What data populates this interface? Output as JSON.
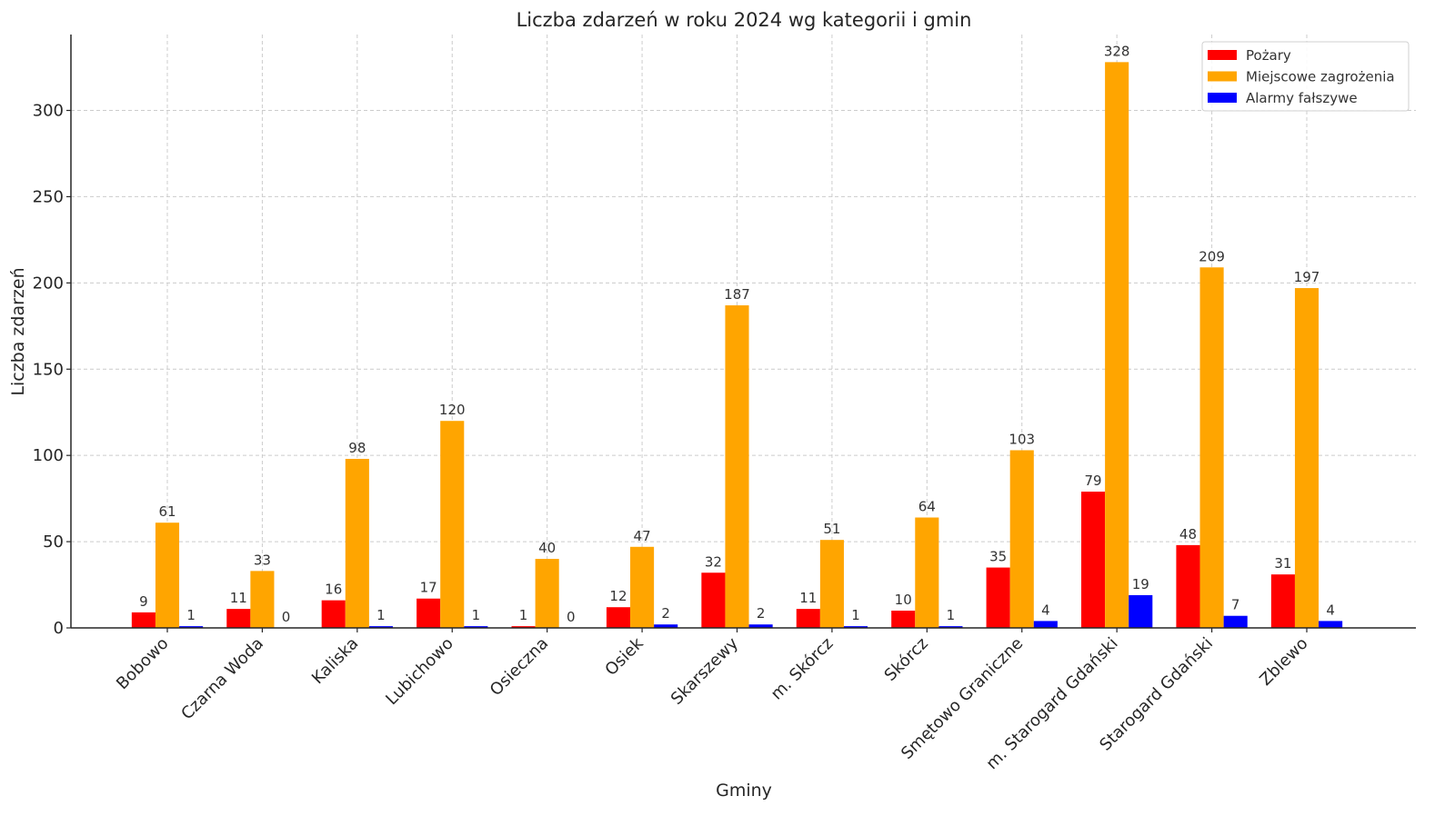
{
  "chart_data": {
    "type": "bar",
    "title": "Liczba zdarzeń w roku 2024 wg kategorii i gmin",
    "xlabel": "Gminy",
    "ylabel": "Liczba zdarzeń",
    "ylim": [
      0,
      344
    ],
    "yticks": [
      0,
      50,
      100,
      150,
      200,
      250,
      300
    ],
    "grid": true,
    "legend_position": "top-right",
    "categories": [
      "Bobowo",
      "Czarna Woda",
      "Kaliska",
      "Lubichowo",
      "Osieczna",
      "Osiek",
      "Skarszewy",
      "m. Skórcz",
      "Skórcz",
      "Smętowo Graniczne",
      "m. Starogard Gdański",
      "Starogard Gdański",
      "Zblewo"
    ],
    "series": [
      {
        "name": "Pożary",
        "color": "#ff0000",
        "values": [
          9,
          11,
          16,
          17,
          1,
          12,
          32,
          11,
          10,
          35,
          79,
          48,
          31
        ]
      },
      {
        "name": "Miejscowe zagrożenia",
        "color": "#ffa500",
        "values": [
          61,
          33,
          98,
          120,
          40,
          47,
          187,
          51,
          64,
          103,
          328,
          209,
          197
        ]
      },
      {
        "name": "Alarmy fałszywe",
        "color": "#0000ff",
        "values": [
          1,
          0,
          1,
          1,
          0,
          2,
          2,
          1,
          1,
          4,
          19,
          7,
          4
        ]
      }
    ]
  }
}
